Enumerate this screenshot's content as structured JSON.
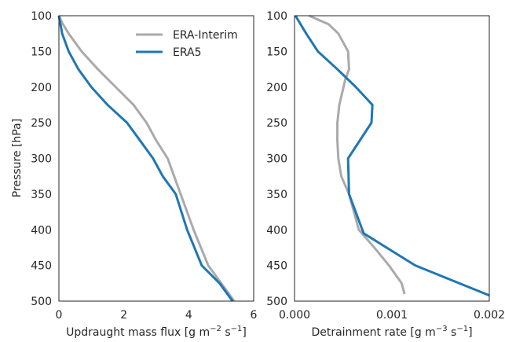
{
  "chart_data": [
    {
      "type": "line",
      "xlabel": "Updraught mass flux [g m",
      "xlabel_unit_sup1": "−2",
      "xlabel_mid": " s",
      "xlabel_unit_sup2": "−1",
      "xlabel_end": "]",
      "ylabel": "Pressure [hPa]",
      "xlim": [
        0,
        6
      ],
      "ylim": [
        500,
        100
      ],
      "xticks": [
        "0",
        "2",
        "4",
        "6"
      ],
      "xtick_values": [
        0,
        2,
        4,
        6
      ],
      "yticks": [
        "100",
        "150",
        "200",
        "250",
        "300",
        "350",
        "400",
        "450",
        "500"
      ],
      "ytick_values": [
        100,
        150,
        200,
        250,
        300,
        350,
        400,
        450,
        500
      ],
      "legend_placement": "top-right",
      "series": [
        {
          "name": "ERA-Interim",
          "color": "#aaaaaa",
          "x": [
            0,
            0.1,
            0.3,
            0.7,
            1.2,
            1.75,
            2.3,
            2.7,
            3.0,
            3.35,
            3.75,
            4.15,
            4.6,
            5.0,
            5.4
          ],
          "y": [
            100,
            110,
            125,
            150,
            175,
            200,
            225,
            250,
            275,
            300,
            350,
            400,
            450,
            475,
            500
          ]
        },
        {
          "name": "ERA5",
          "color": "#1f77b4",
          "x": [
            0,
            0.1,
            0.3,
            0.6,
            1.0,
            1.5,
            2.1,
            2.5,
            2.9,
            3.2,
            3.6,
            3.95,
            4.4,
            4.95,
            5.35
          ],
          "y": [
            100,
            125,
            150,
            175,
            200,
            225,
            250,
            275,
            300,
            325,
            350,
            400,
            450,
            475,
            500
          ]
        }
      ]
    },
    {
      "type": "line",
      "xlabel": "Detrainment rate [g m",
      "xlabel_unit_sup1": "−3",
      "xlabel_mid": " s",
      "xlabel_unit_sup2": "−1",
      "xlabel_end": "]",
      "xlim": [
        0,
        0.002
      ],
      "ylim": [
        500,
        100
      ],
      "xticks": [
        "0.000",
        "0.001",
        "0.002"
      ],
      "xtick_values": [
        0,
        0.001,
        0.002
      ],
      "yticks": [
        "100",
        "150",
        "200",
        "250",
        "300",
        "350",
        "400",
        "450",
        "500"
      ],
      "ytick_values": [
        100,
        150,
        200,
        250,
        300,
        350,
        400,
        450,
        500
      ],
      "series": [
        {
          "name": "ERA-Interim",
          "color": "#aaaaaa",
          "x": [
            0.00015,
            0.00035,
            0.00045,
            0.00055,
            0.00056,
            0.00052,
            0.00046,
            0.00044,
            0.00044,
            0.00045,
            0.00048,
            0.00056,
            0.00066,
            0.00082,
            0.00097,
            0.0011,
            0.00113
          ],
          "y": [
            100,
            112,
            125,
            150,
            175,
            190,
            225,
            250,
            275,
            300,
            325,
            350,
            400,
            425,
            450,
            475,
            490
          ]
        },
        {
          "name": "ERA5",
          "color": "#1f77b4",
          "x": [
            1e-05,
            0.00012,
            0.00024,
            0.00044,
            0.00063,
            0.0008,
            0.00079,
            0.00055,
            0.00056,
            0.00071,
            0.00124,
            0.002
          ],
          "y": [
            100,
            125,
            150,
            175,
            200,
            225,
            250,
            300,
            350,
            405,
            450,
            492
          ]
        }
      ]
    }
  ]
}
